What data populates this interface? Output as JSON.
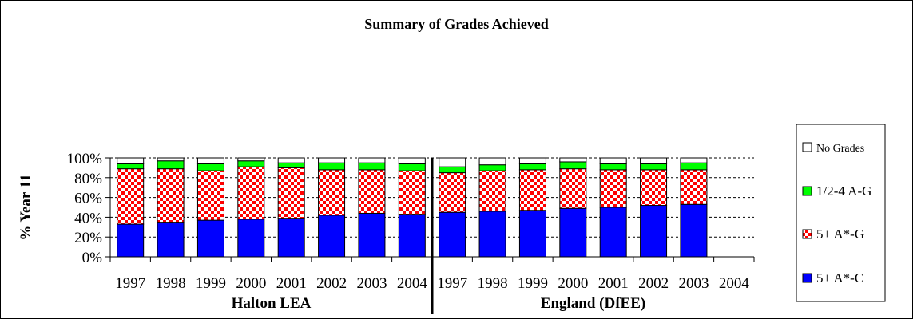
{
  "chart_data": {
    "type": "bar",
    "stacked": true,
    "title": "Summary of Grades Achieved",
    "ylabel": "% Year 11",
    "ylim": [
      0,
      100
    ],
    "y_ticks": [
      "0%",
      "20%",
      "40%",
      "60%",
      "80%",
      "100%"
    ],
    "grid": true,
    "legend_position": "right",
    "groups": [
      {
        "label": "Halton LEA",
        "categories": [
          "1997",
          "1998",
          "1999",
          "2000",
          "2001",
          "2002",
          "2003",
          "2004"
        ]
      },
      {
        "label": "England (DfEE)",
        "categories": [
          "1997",
          "1998",
          "1999",
          "2000",
          "2001",
          "2002",
          "2003",
          "2004"
        ]
      }
    ],
    "series": [
      {
        "name": "5+ A*-C",
        "color": "#0000ff",
        "pattern": "solid",
        "values": [
          33,
          35,
          37,
          38,
          39,
          42,
          44,
          43,
          45,
          46,
          47,
          49,
          50,
          52,
          53,
          0
        ]
      },
      {
        "name": "5+ A*-G",
        "color": "#ff0000",
        "pattern": "checker",
        "values": [
          56,
          54,
          50,
          53,
          51,
          46,
          44,
          44,
          40,
          41,
          41,
          40,
          38,
          36,
          35,
          0
        ]
      },
      {
        "name": "1/2-4 A-G",
        "color": "#00ff00",
        "pattern": "solid",
        "values": [
          5,
          8,
          7,
          6,
          5,
          7,
          7,
          7,
          6,
          6,
          6,
          7,
          6,
          6,
          7,
          0
        ]
      },
      {
        "name": "No Grades",
        "color": "#ffffff",
        "pattern": "solid",
        "values": [
          6,
          3,
          6,
          3,
          5,
          5,
          5,
          6,
          9,
          7,
          6,
          4,
          6,
          6,
          5,
          0
        ]
      }
    ]
  }
}
